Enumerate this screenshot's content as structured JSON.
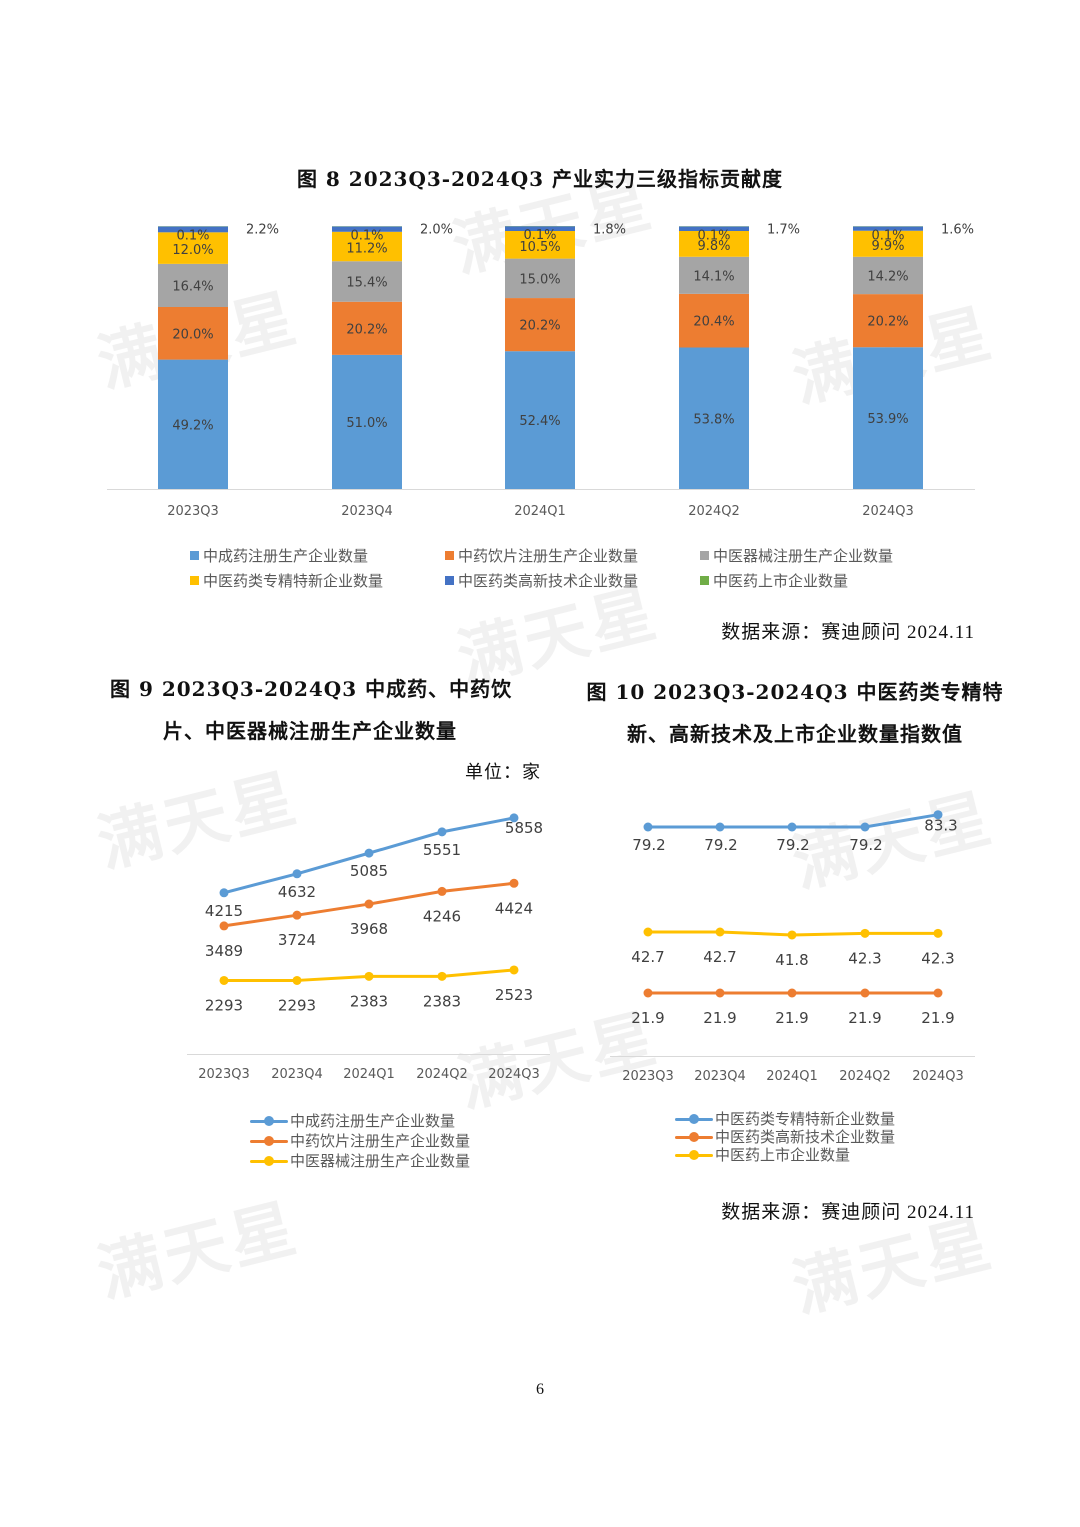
{
  "watermark": "满天星",
  "fig8": {
    "title": "图 8 2023Q3-2024Q3 产业实力三级指标贡献度",
    "source": "数据来源：赛迪顾问 2024.11"
  },
  "fig9": {
    "title_line1": "图 9 2023Q3-2024Q3 中成药、中药饮",
    "title_line2": "片、中医器械注册生产企业数量",
    "unit": "单位：家"
  },
  "fig10": {
    "title_line1": "图 10 2023Q3-2024Q3 中医药类专精特",
    "title_line2": "新、高新技术及上市企业数量指数值",
    "source": "数据来源：赛迪顾问 2024.11"
  },
  "page_number": "6",
  "colors": {
    "blue": "#5B9BD5",
    "orange": "#ED7D31",
    "gray": "#A5A5A5",
    "yellow": "#FFC000",
    "darkblue": "#4472C4",
    "green": "#70AD47"
  },
  "chart_data": [
    {
      "type": "bar",
      "stacked": true,
      "title": "图 8 2023Q3-2024Q3 产业实力三级指标贡献度",
      "categories": [
        "2023Q3",
        "2023Q4",
        "2024Q1",
        "2024Q2",
        "2024Q3"
      ],
      "series": [
        {
          "name": "中成药注册生产企业数量",
          "color": "#5B9BD5",
          "values": [
            49.2,
            51.0,
            52.4,
            53.8,
            53.9
          ],
          "labels": [
            "49.2%",
            "51.0%",
            "52.4%",
            "53.8%",
            "53.9%"
          ]
        },
        {
          "name": "中药饮片注册生产企业数量",
          "color": "#ED7D31",
          "values": [
            20.0,
            20.2,
            20.2,
            20.4,
            20.2
          ],
          "labels": [
            "20.0%",
            "20.2%",
            "20.2%",
            "20.4%",
            "20.2%"
          ]
        },
        {
          "name": "中医器械注册生产企业数量",
          "color": "#A5A5A5",
          "values": [
            16.4,
            15.4,
            15.0,
            14.1,
            14.2
          ],
          "labels": [
            "16.4%",
            "15.4%",
            "15.0%",
            "14.1%",
            "14.2%"
          ]
        },
        {
          "name": "中医药类专精特新企业数量",
          "color": "#FFC000",
          "values": [
            12.0,
            11.2,
            10.5,
            9.8,
            9.9
          ],
          "labels": [
            "12.0%",
            "11.2%",
            "10.5%",
            "9.8%",
            "9.9%"
          ]
        },
        {
          "name": "中医药类高新技术企业数量",
          "color": "#4472C4",
          "values": [
            2.2,
            2.0,
            1.8,
            1.7,
            1.6
          ],
          "labels": [
            "2.2%",
            "2.0%",
            "1.8%",
            "1.7%",
            "1.6%"
          ]
        },
        {
          "name": "中医药上市企业数量",
          "color": "#70AD47",
          "values": [
            0.1,
            0.1,
            0.1,
            0.1,
            0.1
          ],
          "labels": [
            "0.1%",
            "0.1%",
            "0.1%",
            "0.1%",
            "0.1%"
          ]
        }
      ],
      "ylim": [
        0,
        100
      ],
      "grid": false,
      "legend": "bottom"
    },
    {
      "type": "line",
      "title": "图 9 2023Q3-2024Q3 中成药、中药饮片、中医器械注册生产企业数量",
      "categories": [
        "2023Q3",
        "2023Q4",
        "2024Q1",
        "2024Q2",
        "2024Q3"
      ],
      "series": [
        {
          "name": "中成药注册生产企业数量",
          "color": "#5B9BD5",
          "values": [
            4215,
            4632,
            5085,
            5551,
            5858
          ]
        },
        {
          "name": "中药饮片注册生产企业数量",
          "color": "#ED7D31",
          "values": [
            3489,
            3724,
            3968,
            4246,
            4424
          ]
        },
        {
          "name": "中医器械注册生产企业数量",
          "color": "#FFC000",
          "values": [
            2293,
            2293,
            2383,
            2383,
            2523
          ]
        }
      ],
      "ylabel": "单位：家",
      "grid": false,
      "legend": "bottom"
    },
    {
      "type": "line",
      "title": "图 10 2023Q3-2024Q3 中医药类专精特新、高新技术及上市企业数量指数值",
      "categories": [
        "2023Q3",
        "2023Q4",
        "2024Q1",
        "2024Q2",
        "2024Q3"
      ],
      "series": [
        {
          "name": "中医药类专精特新企业数量",
          "color": "#5B9BD5",
          "values": [
            79.2,
            79.2,
            79.2,
            79.2,
            83.3
          ]
        },
        {
          "name": "中医药类高新技术企业数量",
          "color": "#ED7D31",
          "values": [
            21.9,
            21.9,
            21.9,
            21.9,
            21.9
          ]
        },
        {
          "name": "中医药上市企业数量",
          "color": "#FFC000",
          "values": [
            42.7,
            42.7,
            41.8,
            42.3,
            42.3
          ]
        }
      ],
      "grid": false,
      "legend": "bottom"
    }
  ]
}
